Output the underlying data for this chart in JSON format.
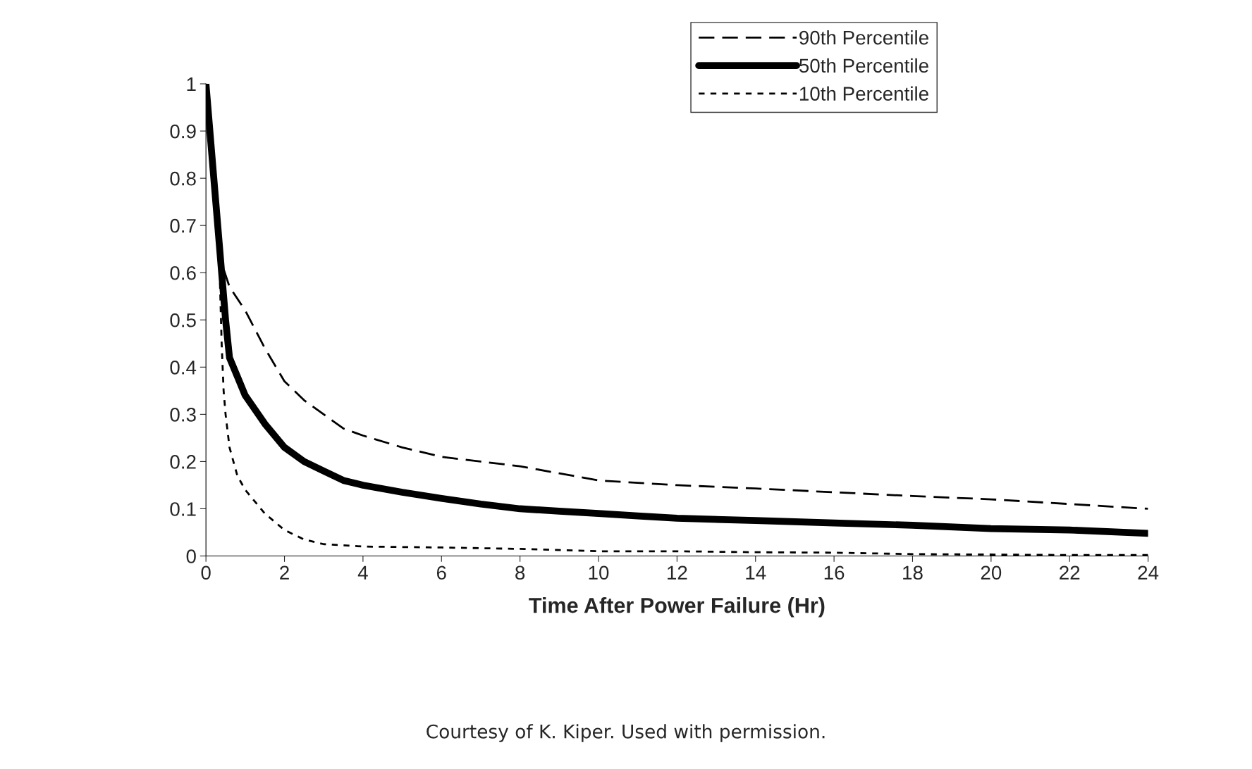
{
  "chart_data": {
    "type": "line",
    "xlabel": "Time After Power Failure (Hr)",
    "series": [
      {
        "name": "90th Percentile",
        "color": "#000000",
        "line_style": "dashed",
        "x": [
          0,
          0.25,
          0.4,
          0.6,
          1,
          1.5,
          2,
          2.5,
          3,
          3.5,
          4,
          5,
          6,
          7,
          8,
          9,
          10,
          11,
          12,
          14,
          16,
          18,
          20,
          22,
          24
        ],
        "values": [
          1,
          0.75,
          0.62,
          0.57,
          0.52,
          0.44,
          0.37,
          0.33,
          0.3,
          0.27,
          0.255,
          0.23,
          0.21,
          0.2,
          0.19,
          0.175,
          0.16,
          0.155,
          0.15,
          0.143,
          0.135,
          0.127,
          0.12,
          0.11,
          0.1
        ]
      },
      {
        "name": "50th Percentile",
        "color": "#000000",
        "line_style": "solid",
        "x": [
          0,
          0.2,
          0.4,
          0.5,
          0.6,
          0.8,
          1,
          1.5,
          2,
          2.5,
          3,
          3.5,
          4,
          5,
          6,
          7,
          8,
          9,
          10,
          11,
          12,
          14,
          16,
          18,
          20,
          22,
          24
        ],
        "values": [
          1,
          0.8,
          0.6,
          0.5,
          0.42,
          0.38,
          0.34,
          0.28,
          0.23,
          0.2,
          0.18,
          0.16,
          0.15,
          0.135,
          0.122,
          0.11,
          0.1,
          0.095,
          0.09,
          0.085,
          0.08,
          0.075,
          0.07,
          0.065,
          0.058,
          0.055,
          0.048
        ]
      },
      {
        "name": "10th Percentile",
        "color": "#000000",
        "line_style": "dotted",
        "x": [
          0,
          0.2,
          0.35,
          0.4,
          0.45,
          0.5,
          0.6,
          0.8,
          1,
          1.5,
          2,
          2.5,
          3,
          4,
          6,
          8,
          10,
          12,
          14,
          16,
          18,
          20,
          22,
          24
        ],
        "values": [
          1,
          0.8,
          0.6,
          0.45,
          0.35,
          0.3,
          0.23,
          0.17,
          0.14,
          0.09,
          0.055,
          0.035,
          0.025,
          0.02,
          0.018,
          0.015,
          0.01,
          0.01,
          0.008,
          0.007,
          0.004,
          0.003,
          0.002,
          0.002
        ]
      }
    ],
    "xlim": [
      0,
      24
    ],
    "xticks": [
      0,
      2,
      4,
      6,
      8,
      10,
      12,
      14,
      16,
      18,
      20,
      22,
      24
    ],
    "ylim": [
      0,
      1
    ],
    "yticks": [
      0,
      0.1,
      0.2,
      0.3,
      0.4,
      0.5,
      0.6,
      0.7,
      0.8,
      0.9,
      1
    ],
    "grid": false,
    "legend": "top right",
    "marker": "none",
    "annotations": [
      "Courtesy of K. Kiper. Used with permission."
    ]
  }
}
